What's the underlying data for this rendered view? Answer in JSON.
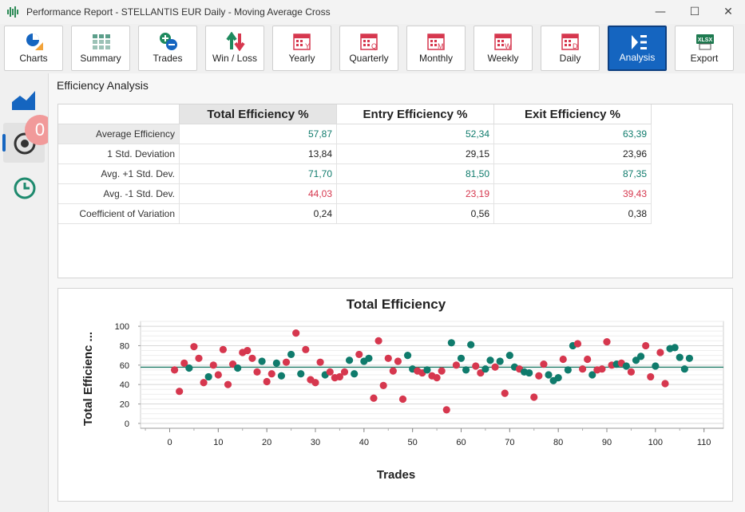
{
  "window": {
    "title": "Performance Report - STELLANTIS EUR Daily - Moving Average Cross",
    "minimize": "—",
    "maximize": "☐",
    "close": "✕"
  },
  "toolbar": {
    "buttons": [
      {
        "label": "Charts",
        "icon": "pie-chart-icon"
      },
      {
        "label": "Summary",
        "icon": "grid-icon"
      },
      {
        "label": "Trades",
        "icon": "plus-minus-icon"
      },
      {
        "label": "Win / Loss",
        "icon": "up-down-arrows-icon"
      },
      {
        "label": "Yearly",
        "icon": "calendar-y-icon",
        "letter": "Y"
      },
      {
        "label": "Quarterly",
        "icon": "calendar-q-icon",
        "letter": "Q"
      },
      {
        "label": "Monthly",
        "icon": "calendar-m-icon",
        "letter": "M"
      },
      {
        "label": "Weekly",
        "icon": "calendar-w-icon",
        "letter": "W"
      },
      {
        "label": "Daily",
        "icon": "calendar-d-icon",
        "letter": "D"
      },
      {
        "label": "Analysis",
        "icon": "analysis-icon",
        "active": true
      },
      {
        "label": "Export",
        "icon": "xlsx-icon",
        "badge_text": "XLSX"
      }
    ]
  },
  "sidebar": {
    "items": [
      {
        "icon": "area-chart-icon"
      },
      {
        "icon": "target-icon",
        "selected": true,
        "badge": "0"
      },
      {
        "icon": "clock-icon"
      }
    ]
  },
  "section_title": "Efficiency Analysis",
  "table": {
    "columns": [
      "Total Efficiency %",
      "Entry Efficiency %",
      "Exit Efficiency %"
    ],
    "rows": [
      {
        "label": "Average Efficiency",
        "values": [
          "57,87",
          "52,34",
          "63,39"
        ],
        "tone": "pos"
      },
      {
        "label": "1 Std. Deviation",
        "values": [
          "13,84",
          "29,15",
          "23,96"
        ],
        "tone": "plain"
      },
      {
        "label": "Avg. +1 Std. Dev.",
        "values": [
          "71,70",
          "81,50",
          "87,35"
        ],
        "tone": "pos"
      },
      {
        "label": "Avg. -1 Std. Dev.",
        "values": [
          "44,03",
          "23,19",
          "39,43"
        ],
        "tone": "neg"
      },
      {
        "label": "Coefficient of Variation",
        "values": [
          "0,24",
          "0,56",
          "0,38"
        ],
        "tone": "plain"
      }
    ]
  },
  "colors": {
    "accent": "#1565c0",
    "positive": "#0f7b6c",
    "negative": "#d6374e",
    "mean_line": "#1e7a66"
  },
  "chart_data": {
    "type": "scatter",
    "title": "Total Efficiency",
    "xlabel": "Trades",
    "ylabel": "Total Efficienc ...",
    "xlim": [
      -6,
      114
    ],
    "ylim": [
      -5,
      105
    ],
    "xticks": [
      0,
      10,
      20,
      30,
      40,
      50,
      60,
      70,
      80,
      90,
      100,
      110
    ],
    "yticks": [
      0,
      20,
      40,
      60,
      80,
      100
    ],
    "mean_line": 57.87,
    "grid": true,
    "legend": "none",
    "x": [
      1,
      2,
      3,
      4,
      5,
      6,
      7,
      8,
      9,
      10,
      11,
      12,
      13,
      14,
      15,
      16,
      17,
      18,
      19,
      20,
      21,
      22,
      23,
      24,
      25,
      26,
      27,
      28,
      29,
      30,
      31,
      32,
      33,
      34,
      35,
      36,
      37,
      38,
      39,
      40,
      41,
      42,
      43,
      44,
      45,
      46,
      47,
      48,
      49,
      50,
      51,
      52,
      53,
      54,
      55,
      56,
      57,
      58,
      59,
      60,
      61,
      62,
      63,
      64,
      65,
      66,
      67,
      68,
      69,
      70,
      71,
      72,
      73,
      74,
      75,
      76,
      77,
      78,
      79,
      80,
      81,
      82,
      83,
      84,
      85,
      86,
      87,
      88,
      89,
      90,
      91,
      92,
      93,
      94,
      95,
      96,
      97,
      98,
      99,
      100,
      101,
      102,
      103,
      104,
      105,
      106,
      107
    ],
    "y": [
      55,
      33,
      62,
      57,
      79,
      67,
      42,
      48,
      60,
      50,
      76,
      40,
      61,
      57,
      73,
      75,
      67,
      53,
      64,
      43,
      51,
      62,
      49,
      63,
      71,
      93,
      51,
      76,
      45,
      42,
      63,
      50,
      53,
      47,
      48,
      53,
      65,
      51,
      71,
      64,
      67,
      26,
      85,
      39,
      67,
      54,
      64,
      25,
      70,
      56,
      54,
      52,
      55,
      49,
      47,
      54,
      14,
      83,
      60,
      67,
      55,
      81,
      59,
      52,
      56,
      65,
      58,
      64,
      31,
      70,
      58,
      56,
      53,
      52,
      27,
      49,
      61,
      50,
      44,
      47,
      66,
      55,
      80,
      82,
      56,
      66,
      50,
      55,
      56,
      84,
      60,
      61,
      62,
      59,
      53,
      65,
      69,
      80,
      48,
      59,
      73,
      41,
      77,
      78,
      68,
      56,
      67
    ],
    "colors": [
      "r",
      "r",
      "r",
      "g",
      "r",
      "r",
      "r",
      "g",
      "r",
      "r",
      "r",
      "r",
      "r",
      "g",
      "r",
      "r",
      "r",
      "r",
      "g",
      "r",
      "r",
      "g",
      "g",
      "r",
      "g",
      "r",
      "g",
      "r",
      "r",
      "r",
      "r",
      "g",
      "r",
      "r",
      "r",
      "r",
      "g",
      "g",
      "r",
      "g",
      "g",
      "r",
      "r",
      "r",
      "r",
      "r",
      "r",
      "r",
      "g",
      "g",
      "r",
      "r",
      "g",
      "r",
      "r",
      "r",
      "r",
      "g",
      "r",
      "g",
      "g",
      "g",
      "r",
      "r",
      "g",
      "g",
      "r",
      "g",
      "r",
      "g",
      "g",
      "r",
      "g",
      "g",
      "r",
      "r",
      "r",
      "g",
      "g",
      "g",
      "r",
      "g",
      "g",
      "r",
      "r",
      "r",
      "g",
      "r",
      "r",
      "r",
      "r",
      "g",
      "r",
      "g",
      "r",
      "g",
      "g",
      "r",
      "r",
      "g",
      "r",
      "r",
      "g",
      "g",
      "g",
      "g",
      "g"
    ]
  }
}
